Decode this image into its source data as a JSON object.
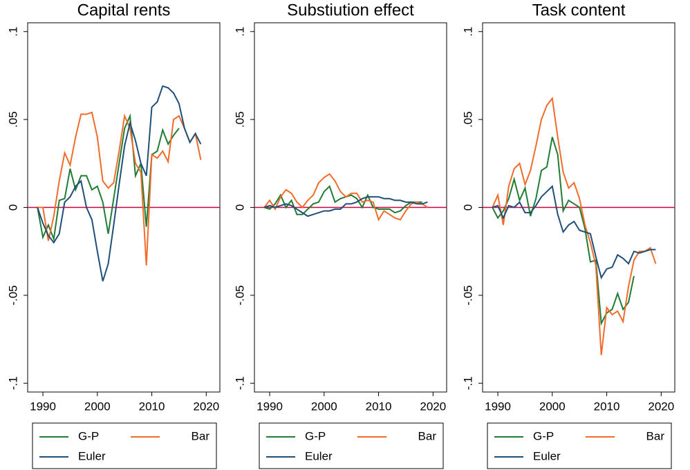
{
  "chart_data": [
    {
      "type": "line",
      "title": "Capital rents",
      "x": [
        1989,
        1990,
        1991,
        1992,
        1993,
        1994,
        1995,
        1996,
        1997,
        1998,
        1999,
        2000,
        2001,
        2002,
        2003,
        2004,
        2005,
        2006,
        2007,
        2008,
        2009,
        2010,
        2011,
        2012,
        2013,
        2014,
        2015,
        2016,
        2017,
        2018,
        2019
      ],
      "series": [
        {
          "name": "G-P",
          "color": "#1e7d32",
          "values": [
            0,
            -0.017,
            -0.01,
            -0.018,
            0.004,
            0.005,
            0.022,
            0.01,
            0.018,
            0.018,
            0.01,
            0.012,
            0.003,
            -0.015,
            0.005,
            0.025,
            0.045,
            0.052,
            0.018,
            0.025,
            -0.011,
            0.03,
            0.032,
            0.044,
            0.036,
            0.041,
            0.045,
            null,
            null,
            null,
            null
          ]
        },
        {
          "name": "Bar",
          "color": "#f26b2a",
          "values": [
            0,
            0,
            -0.019,
            -0.005,
            0.015,
            0.031,
            0.024,
            0.04,
            0.053,
            0.053,
            0.054,
            0.04,
            0.015,
            0.011,
            0.014,
            0.032,
            0.052,
            0.045,
            0.025,
            0.02,
            -0.033,
            0.03,
            0.028,
            0.032,
            0.026,
            0.05,
            0.052,
            0.045,
            0.037,
            0.042,
            0.027
          ]
        },
        {
          "name": "Euler",
          "color": "#1f4e79",
          "values": [
            0,
            -0.009,
            -0.016,
            -0.02,
            -0.015,
            0.003,
            0.006,
            0.012,
            0.015,
            0,
            -0.007,
            -0.025,
            -0.042,
            -0.032,
            -0.01,
            0.013,
            0.035,
            0.048,
            0.038,
            0.025,
            0.018,
            0.057,
            0.06,
            0.069,
            0.068,
            0.065,
            0.059,
            0.045,
            0.037,
            0.042,
            0.036
          ]
        }
      ],
      "xlim": [
        1987.2,
        2022.5
      ],
      "xticks": [
        1990,
        2000,
        2010,
        2020
      ],
      "ylim": [
        -0.105,
        0.105
      ],
      "yticks": [
        {
          "value": -0.1,
          "label": "-.1"
        },
        {
          "value": -0.05,
          "label": "-.05"
        },
        0,
        {
          "value": 0.05,
          "label": ".05"
        },
        {
          "value": 0.1,
          "label": ".1"
        }
      ],
      "hline": 0,
      "hline_color": "#c8003c"
    },
    {
      "type": "line",
      "title": "Substiution effect",
      "x": [
        1989,
        1990,
        1991,
        1992,
        1993,
        1994,
        1995,
        1996,
        1997,
        1998,
        1999,
        2000,
        2001,
        2002,
        2003,
        2004,
        2005,
        2006,
        2007,
        2008,
        2009,
        2010,
        2011,
        2012,
        2013,
        2014,
        2015,
        2016,
        2017,
        2018,
        2019
      ],
      "series": [
        {
          "name": "G-P",
          "color": "#1e7d32",
          "values": [
            0,
            -0.001,
            0.002,
            0.007,
            0,
            0.004,
            -0.004,
            -0.004,
            -0.001,
            0.002,
            0.003,
            0.009,
            0.012,
            0.003,
            0.005,
            0.006,
            0.007,
            0.005,
            0,
            0.007,
            0,
            -0.001,
            -0.001,
            -0.001,
            -0.003,
            -0.002,
            0.001,
            0.003,
            0.003,
            0.003,
            null
          ]
        },
        {
          "name": "Bar",
          "color": "#f26b2a",
          "values": [
            0,
            0.004,
            -0.001,
            0.006,
            0.01,
            0.008,
            0.003,
            0,
            0.004,
            0.007,
            0.014,
            0.017,
            0.019,
            0.015,
            0.009,
            0.006,
            0.008,
            0.008,
            0.003,
            0.004,
            0.003,
            -0.007,
            -0.002,
            -0.004,
            -0.006,
            -0.007,
            -0.002,
            0.002,
            0.003,
            0.002,
            0
          ]
        },
        {
          "name": "Euler",
          "color": "#1f4e79",
          "values": [
            0,
            0.001,
            0,
            0.001,
            0.002,
            0.001,
            -0.001,
            -0.003,
            -0.005,
            -0.004,
            -0.003,
            -0.002,
            -0.002,
            -0.001,
            -0.001,
            0.002,
            0.002,
            0.003,
            0.005,
            0.006,
            0.006,
            0.006,
            0.005,
            0.005,
            0.004,
            0.004,
            0.003,
            0.003,
            0.002,
            0.002,
            0.003
          ]
        }
      ],
      "xlim": [
        1987.2,
        2022.5
      ],
      "xticks": [
        1990,
        2000,
        2010,
        2020
      ],
      "ylim": [
        -0.105,
        0.105
      ],
      "yticks": [
        {
          "value": -0.1,
          "label": "-.1"
        },
        {
          "value": -0.05,
          "label": "-.05"
        },
        0,
        {
          "value": 0.05,
          "label": ".05"
        },
        {
          "value": 0.1,
          "label": ".1"
        }
      ],
      "hline": 0,
      "hline_color": "#c8003c"
    },
    {
      "type": "line",
      "title": "Task content",
      "x": [
        1989,
        1990,
        1991,
        1992,
        1993,
        1994,
        1995,
        1996,
        1997,
        1998,
        1999,
        2000,
        2001,
        2002,
        2003,
        2004,
        2005,
        2006,
        2007,
        2008,
        2009,
        2010,
        2011,
        2012,
        2013,
        2014,
        2015,
        2016,
        2017,
        2018,
        2019
      ],
      "series": [
        {
          "name": "G-P",
          "color": "#1e7d32",
          "values": [
            0,
            -0.006,
            -0.002,
            0.005,
            0.016,
            0.004,
            0.011,
            -0.005,
            0.005,
            0.021,
            0.023,
            0.04,
            0.03,
            -0.002,
            0.004,
            0.002,
            0,
            -0.012,
            -0.031,
            -0.03,
            -0.066,
            -0.06,
            -0.058,
            -0.049,
            -0.058,
            -0.054,
            -0.039,
            null,
            null,
            null,
            null
          ]
        },
        {
          "name": "Bar",
          "color": "#f26b2a",
          "values": [
            0,
            0.007,
            -0.01,
            0.012,
            0.022,
            0.025,
            0.013,
            0.021,
            0.035,
            0.05,
            0.058,
            0.062,
            0.04,
            0.02,
            0.011,
            0.014,
            0.005,
            -0.01,
            -0.02,
            -0.033,
            -0.084,
            -0.057,
            -0.061,
            -0.059,
            -0.065,
            -0.045,
            -0.03,
            -0.025,
            -0.025,
            -0.023,
            -0.032
          ]
        },
        {
          "name": "Euler",
          "color": "#1f4e79",
          "values": [
            0,
            0.001,
            -0.006,
            0.001,
            0,
            0.003,
            -0.003,
            -0.003,
            0.001,
            0.006,
            0.009,
            0.012,
            -0.004,
            -0.014,
            -0.01,
            -0.008,
            -0.013,
            -0.014,
            -0.015,
            -0.028,
            -0.04,
            -0.035,
            -0.034,
            -0.027,
            -0.029,
            -0.032,
            -0.025,
            -0.026,
            -0.025,
            -0.024,
            -0.024
          ]
        }
      ],
      "xlim": [
        1987.2,
        2022.5
      ],
      "xticks": [
        1990,
        2000,
        2010,
        2020
      ],
      "ylim": [
        -0.105,
        0.105
      ],
      "yticks": [
        {
          "value": -0.1,
          "label": "-.1"
        },
        {
          "value": -0.05,
          "label": "-.05"
        },
        0,
        {
          "value": 0.05,
          "label": ".05"
        },
        {
          "value": 0.1,
          "label": ".1"
        }
      ],
      "hline": 0,
      "hline_color": "#c8003c"
    }
  ]
}
